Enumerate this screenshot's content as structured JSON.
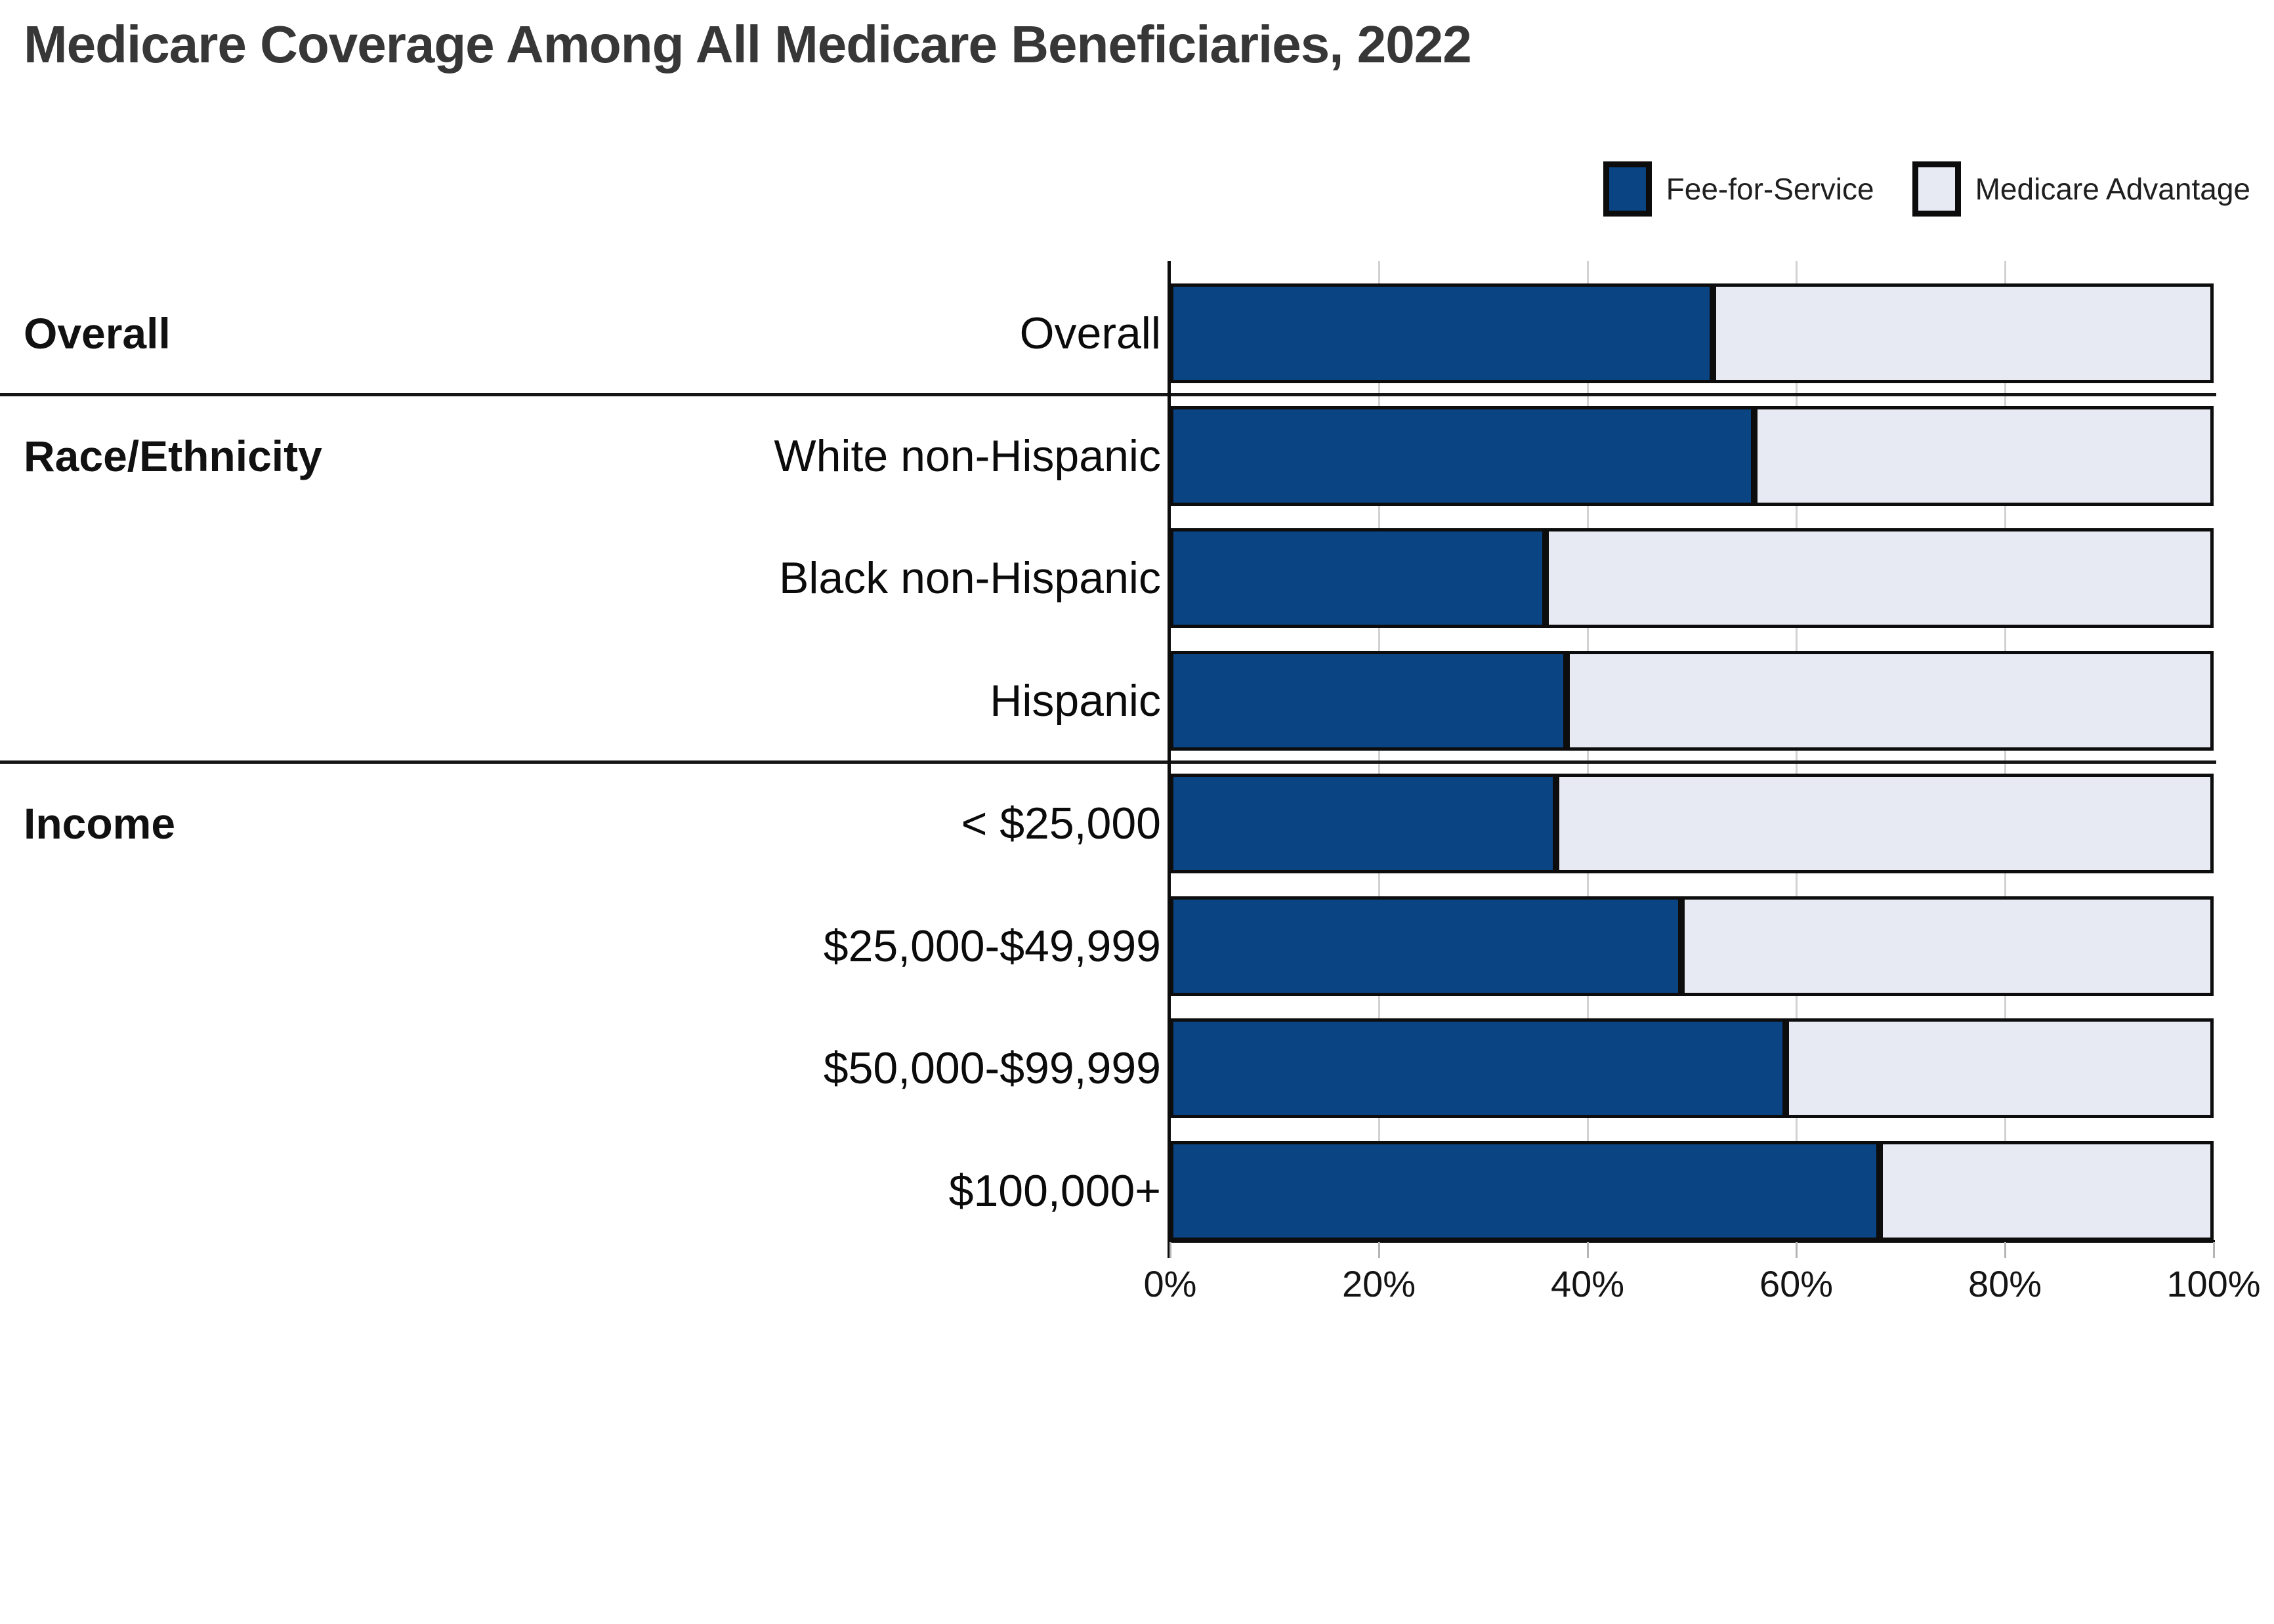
{
  "title": "Medicare Coverage Among All Medicare Beneficiaries, 2022",
  "legend": [
    {
      "label": "Fee-for-Service",
      "color": "#0A4483"
    },
    {
      "label": "Medicare Advantage",
      "color": "#E7EAF2"
    }
  ],
  "colors": {
    "fee_for_service": "#0A4483",
    "medicare_advantage": "#E7EAF2",
    "bar_border": "#0d0d0d",
    "title_text": "#373737",
    "gridline": "#d2d2d2"
  },
  "sections": [
    {
      "label": "Overall",
      "start_row": 0,
      "divider_above": false
    },
    {
      "label": "Race/Ethnicity",
      "start_row": 1,
      "divider_above": true
    },
    {
      "label": "Income",
      "start_row": 4,
      "divider_above": true
    }
  ],
  "chart_data": {
    "type": "bar",
    "orientation": "horizontal",
    "stacked": true,
    "title": "Medicare Coverage Among All Medicare Beneficiaries, 2022",
    "categories": [
      "Overall",
      "White non-Hispanic",
      "Black non-Hispanic",
      "Hispanic",
      "< $25,000",
      "$25,000-$49,999",
      "$50,000-$99,999",
      "$100,000+"
    ],
    "series": [
      {
        "name": "Fee-for-Service",
        "values": [
          52,
          56,
          36,
          38,
          37,
          49,
          59,
          68
        ]
      },
      {
        "name": "Medicare Advantage",
        "values": [
          48,
          44,
          64,
          62,
          63,
          51,
          41,
          32
        ]
      }
    ],
    "x_ticks": [
      "0%",
      "20%",
      "40%",
      "60%",
      "80%",
      "100%"
    ],
    "x_tick_values": [
      0,
      20,
      40,
      60,
      80,
      100
    ],
    "xlim": [
      0,
      100
    ],
    "grid": "vertical-light",
    "legend_position": "top-right",
    "unit": "percent of beneficiaries"
  }
}
